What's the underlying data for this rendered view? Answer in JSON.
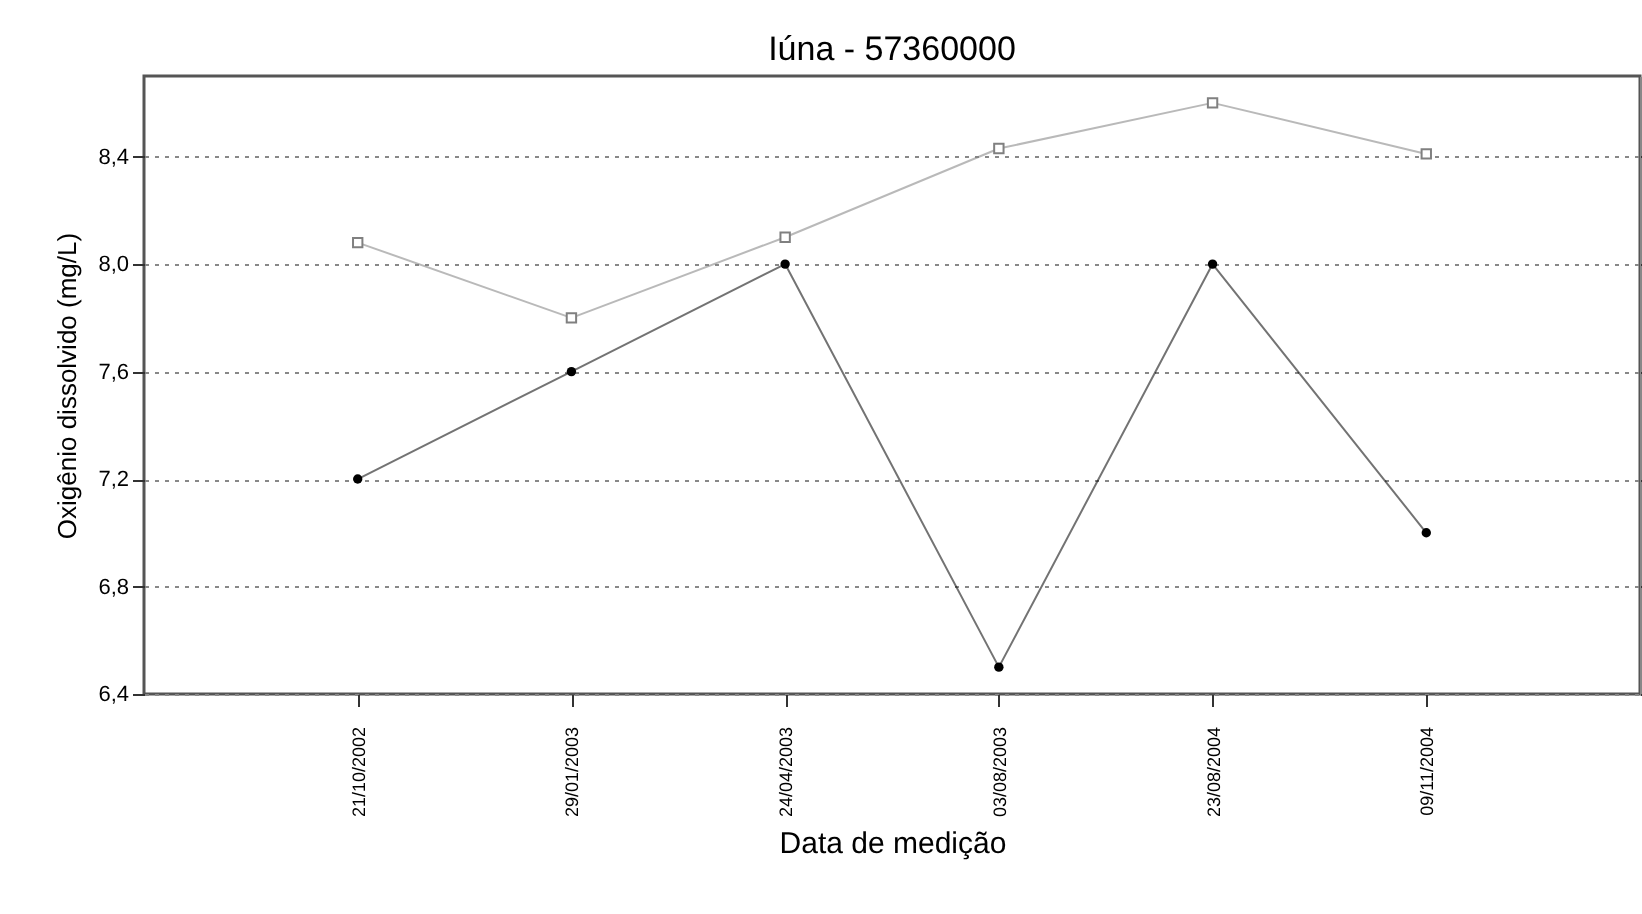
{
  "chart_data": {
    "type": "line",
    "title": "Iúna - 57360000",
    "xlabel": "Data de medição",
    "ylabel": "Oxigênio dissolvido (mg/L)",
    "categories": [
      "21/10/2002",
      "29/01/2003",
      "24/04/2003",
      "03/08/2003",
      "23/08/2004",
      "09/11/2004"
    ],
    "series": [
      {
        "color": "#808080",
        "marker": "square",
        "values": [
          8.08,
          7.8,
          8.1,
          8.43,
          8.6,
          8.41
        ]
      },
      {
        "color": "#000000",
        "marker": "circle",
        "values": [
          7.2,
          7.6,
          8.0,
          6.5,
          8.0,
          7.0
        ]
      }
    ],
    "ylim": [
      6.4,
      8.7
    ],
    "yticks": [
      {
        "value": 6.4,
        "label": "6,4"
      },
      {
        "value": 6.8,
        "label": "6,8"
      },
      {
        "value": 7.2,
        "label": "7,2"
      },
      {
        "value": 7.6,
        "label": "7,6"
      },
      {
        "value": 8.0,
        "label": "8,0"
      },
      {
        "value": 8.4,
        "label": "8,4"
      }
    ],
    "grid": "y",
    "line_style": "solid"
  }
}
